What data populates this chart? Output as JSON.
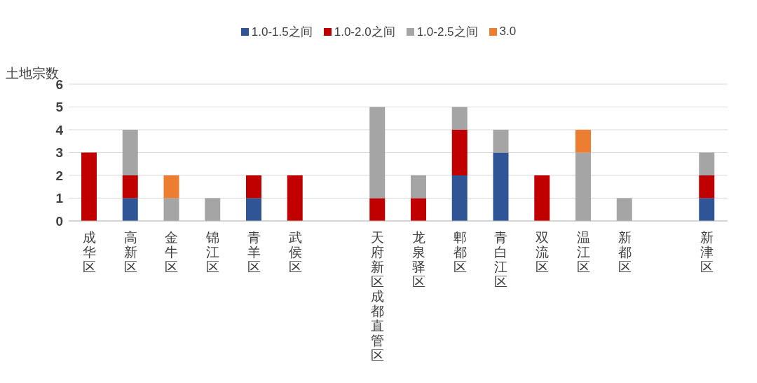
{
  "chart_data": {
    "type": "bar",
    "stacked": true,
    "ylabel": "土地宗数",
    "categories": [
      "成华区",
      "高新区",
      "金牛区",
      "锦江区",
      "青羊区",
      "武侯区",
      null,
      "天府新区成都直管区",
      "龙泉驿区",
      "郫都区",
      "青白江区",
      "双流区",
      "温江区",
      "新都区",
      null,
      "新津区"
    ],
    "series": [
      {
        "name": "1.0-1.5之间",
        "color": "#2f5597",
        "values": [
          null,
          1,
          null,
          null,
          1,
          null,
          null,
          null,
          null,
          2,
          3,
          null,
          null,
          null,
          null,
          1
        ]
      },
      {
        "name": "1.0-2.0之间",
        "color": "#c00000",
        "values": [
          3,
          1,
          null,
          null,
          1,
          2,
          null,
          1,
          1,
          2,
          null,
          2,
          null,
          null,
          null,
          1
        ]
      },
      {
        "name": "1.0-2.5之间",
        "color": "#a5a5a5",
        "values": [
          null,
          2,
          1,
          1,
          null,
          null,
          null,
          4,
          1,
          1,
          1,
          null,
          3,
          1,
          null,
          1
        ]
      },
      {
        "name": "3.0",
        "color": "#ed7d31",
        "values": [
          null,
          null,
          1,
          null,
          null,
          null,
          null,
          null,
          null,
          null,
          null,
          null,
          1,
          null,
          null,
          null
        ]
      }
    ],
    "ylim": [
      0,
      6
    ],
    "yticks": [
      0,
      1,
      2,
      3,
      4,
      5,
      6
    ],
    "grid": "y",
    "legend": "top"
  }
}
